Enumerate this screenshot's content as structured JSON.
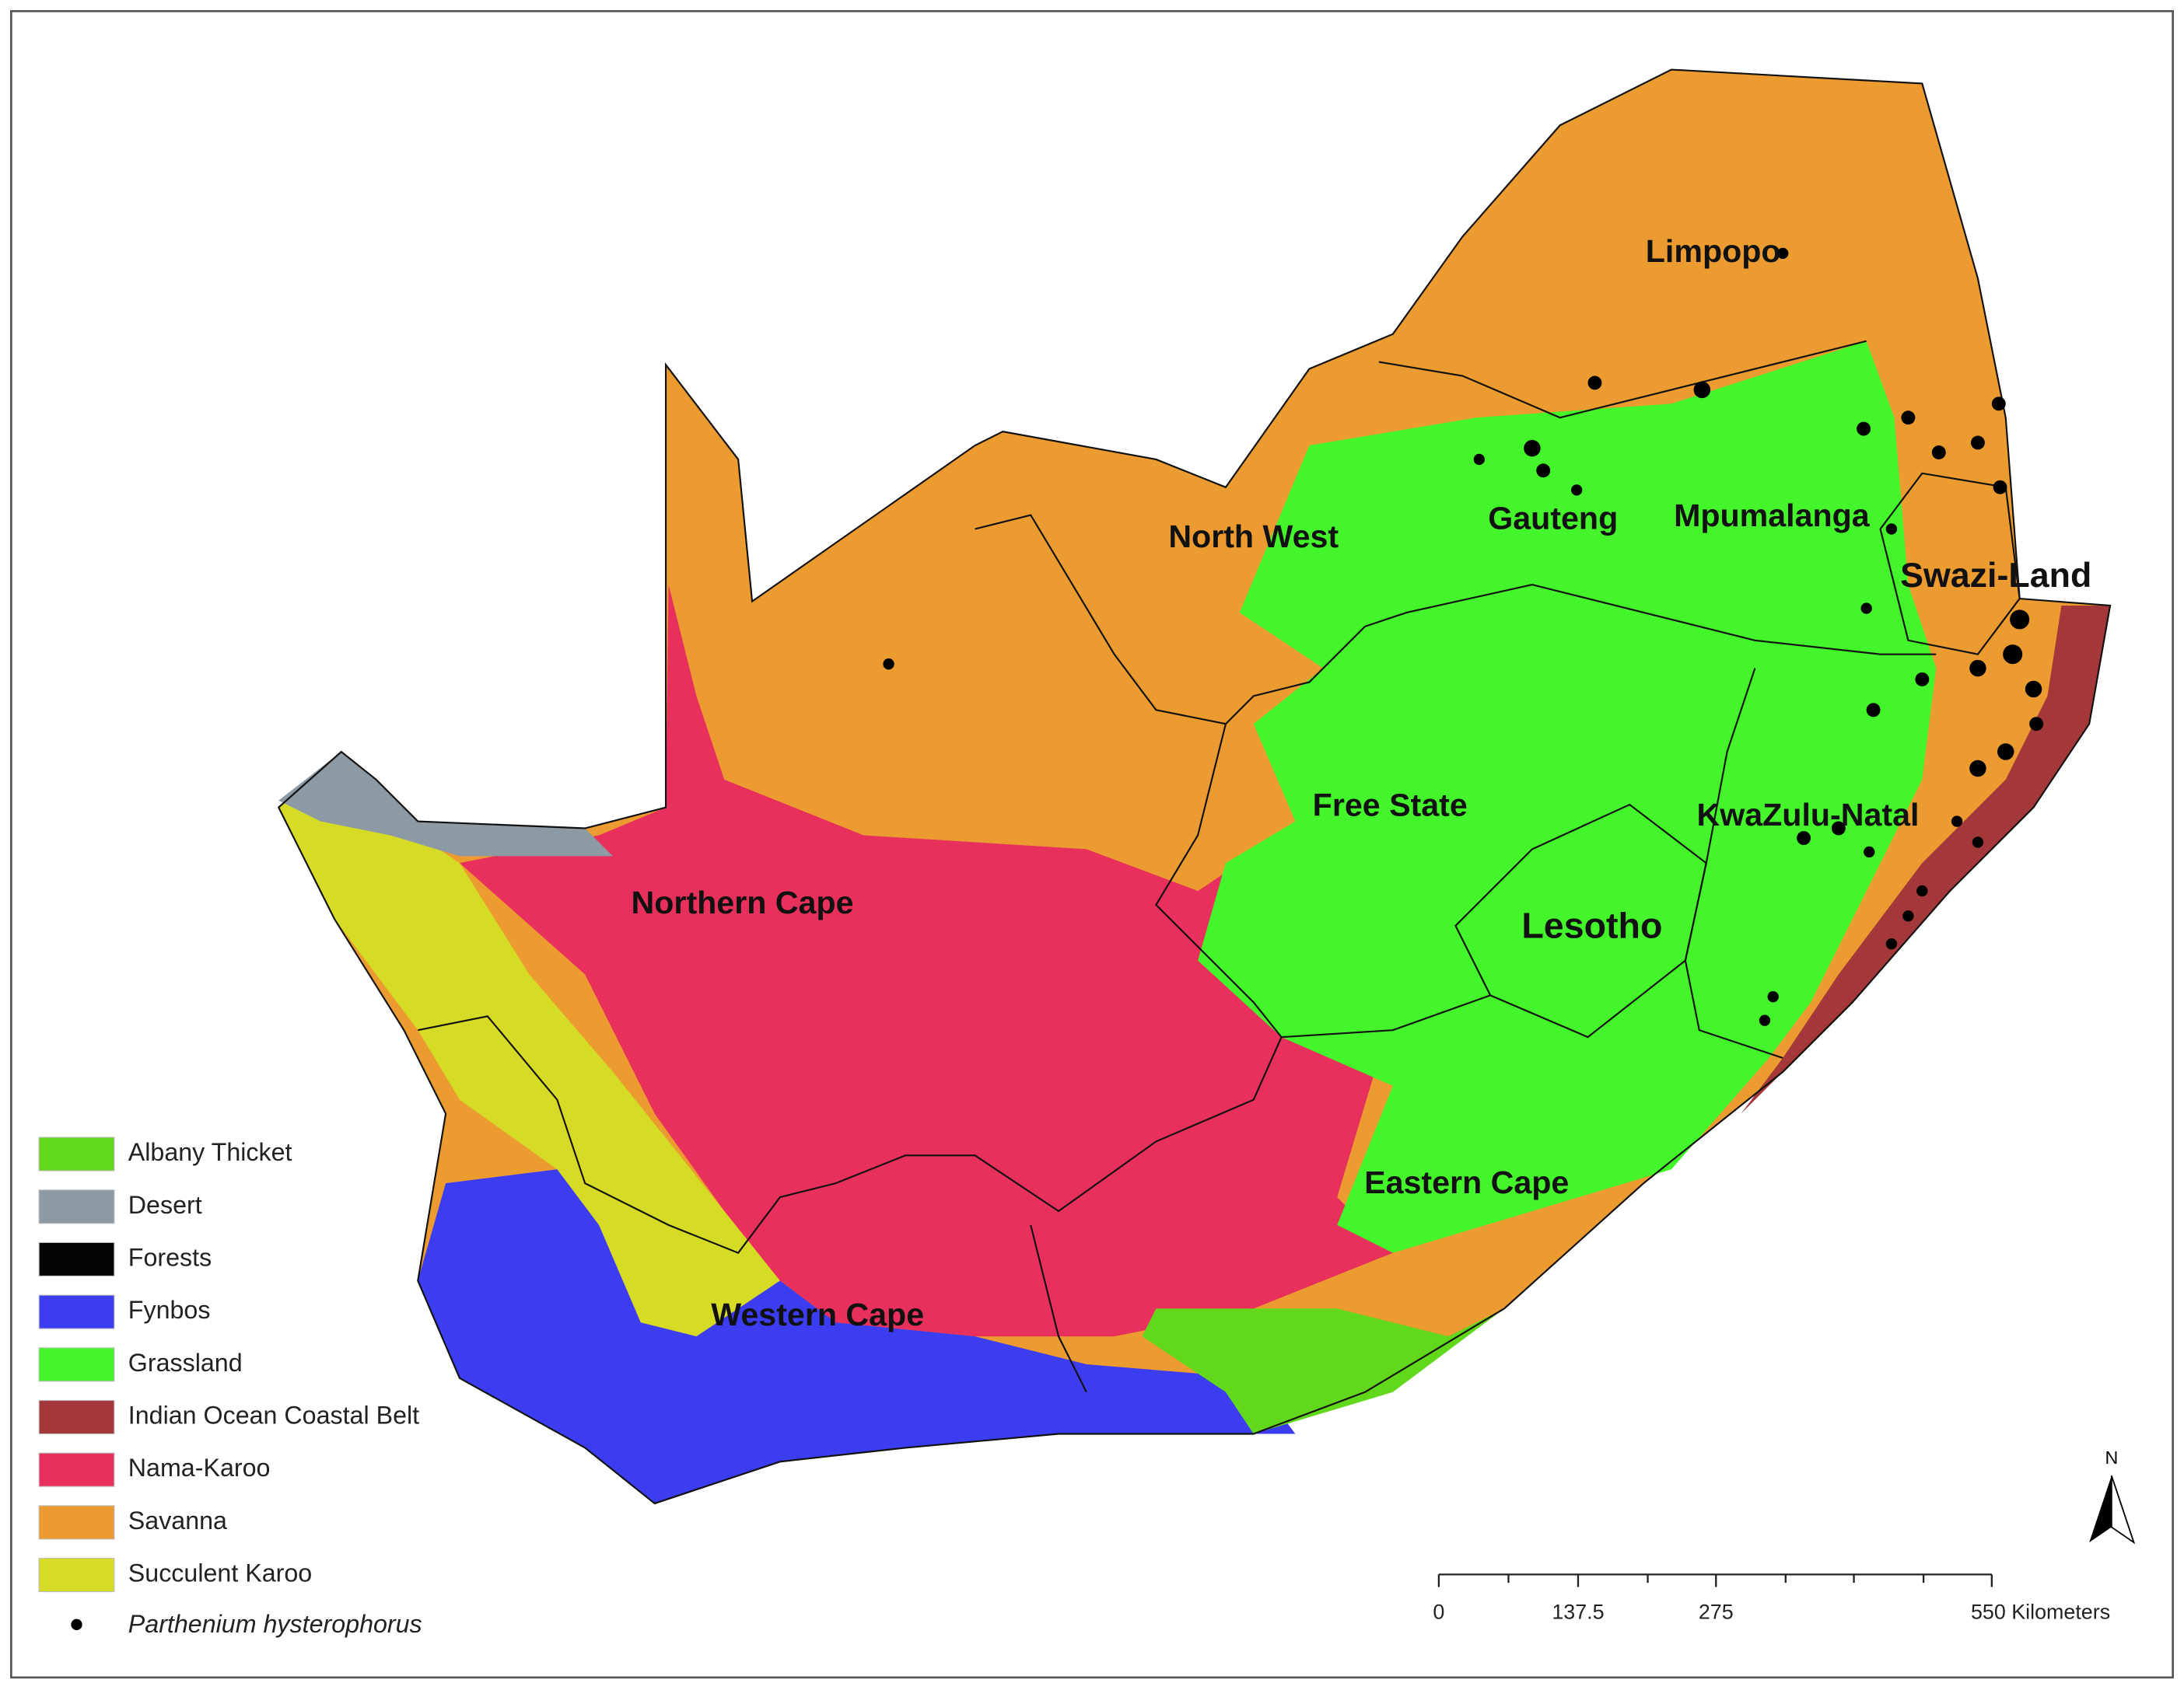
{
  "map": {
    "provinces": [
      "Limpopo",
      "North West",
      "Gauteng",
      "Mpumalanga",
      "Swazi-Land",
      "Free State",
      "KwaZulu-Natal",
      "Northern Cape",
      "Lesotho",
      "Eastern Cape",
      "Western Cape"
    ],
    "legend": [
      {
        "label": "Albany Thicket",
        "color": "#62d81c"
      },
      {
        "label": "Desert",
        "color": "#8e9aa3"
      },
      {
        "label": "Forests",
        "color": "#050505"
      },
      {
        "label": "Fynbos",
        "color": "#3c3cf0"
      },
      {
        "label": "Grassland",
        "color": "#43f52a"
      },
      {
        "label": "Indian Ocean Coastal Belt",
        "color": "#a3373a"
      },
      {
        "label": "Nama-Karoo",
        "color": "#e8305c"
      },
      {
        "label": "Savanna",
        "color": "#eb9b30"
      },
      {
        "label": "Succulent Karoo",
        "color": "#d6dc26"
      }
    ],
    "species": "Parthenium hysterophorus",
    "north": "N",
    "scale_labels": [
      "0",
      "137.5",
      "275",
      "550 Kilometers"
    ]
  }
}
